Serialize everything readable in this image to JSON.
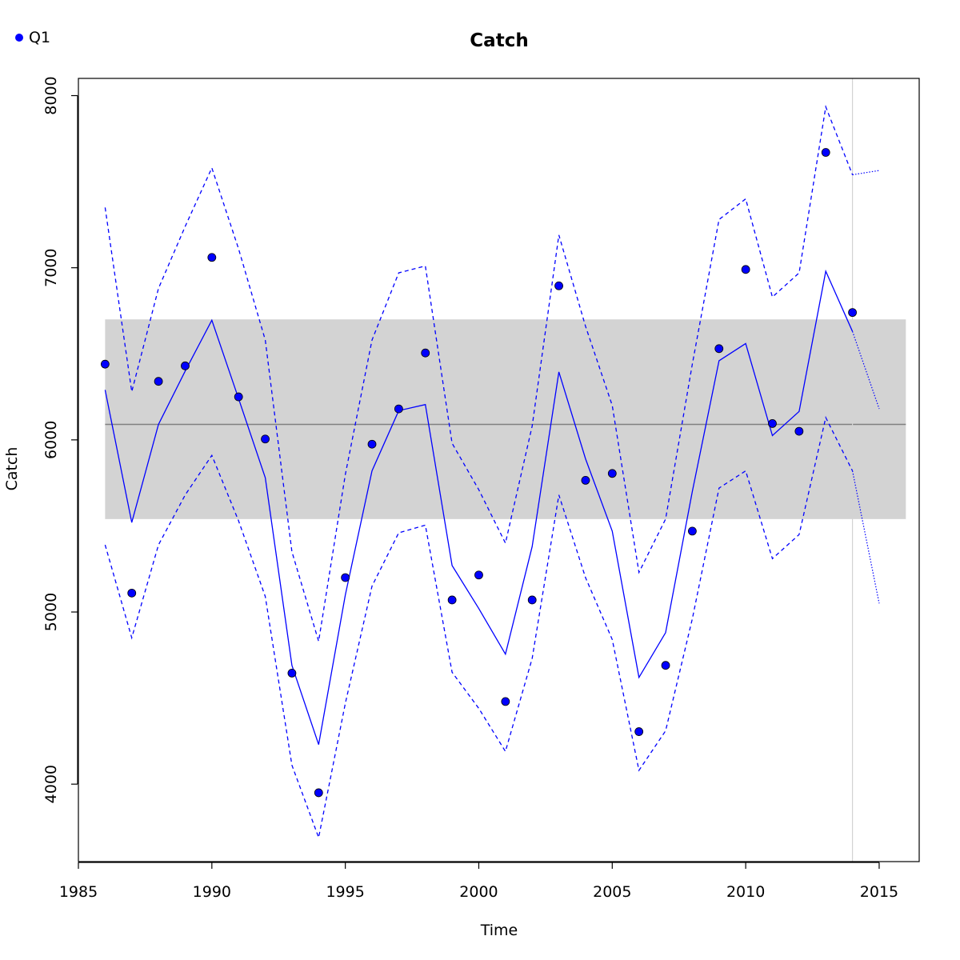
{
  "chart_data": {
    "type": "line",
    "title": "Catch",
    "xlabel": "Time",
    "ylabel": "Catch",
    "xlim": [
      1985,
      2016.5
    ],
    "ylim": [
      3550,
      8100
    ],
    "xticks": [
      1985,
      1990,
      1995,
      2000,
      2005,
      2010,
      2015
    ],
    "yticks": [
      4000,
      5000,
      6000,
      7000,
      8000
    ],
    "grid": false,
    "legend": {
      "position": "top-left",
      "entries": [
        {
          "label": "Q1",
          "color": "#0000ff",
          "marker": "point"
        }
      ]
    },
    "colors": {
      "series": "#0000ff",
      "band": "#d3d3d3",
      "mean_line": "#808080",
      "vline": "#d3d3d3"
    },
    "reference": {
      "mean": 6090,
      "band_low": 5540,
      "band_high": 6700,
      "x_start": 1986,
      "x_end": 2016,
      "vline_x": 2014
    },
    "observed": {
      "name": "Q1",
      "x": [
        1986,
        1987,
        1988,
        1989,
        1990,
        1991,
        1992,
        1993,
        1994,
        1995,
        1996,
        1997,
        1998,
        1999,
        2000,
        2001,
        2002,
        2003,
        2004,
        2005,
        2006,
        2007,
        2008,
        2009,
        2010,
        2011,
        2012,
        2013,
        2014
      ],
      "y": [
        6440,
        5110,
        6340,
        6430,
        7060,
        6250,
        6005,
        4645,
        3950,
        5200,
        5975,
        6180,
        6505,
        5070,
        5215,
        4480,
        5070,
        6895,
        5765,
        5805,
        4305,
        4690,
        5470,
        6530,
        6990,
        6095,
        6050,
        7670,
        6740
      ]
    },
    "fitted": {
      "x": [
        1986,
        1987,
        1988,
        1989,
        1990,
        1991,
        1992,
        1993,
        1994,
        1995,
        1996,
        1997,
        1998,
        1999,
        2000,
        2001,
        2002,
        2003,
        2004,
        2005,
        2006,
        2007,
        2008,
        2009,
        2010,
        2011,
        2012,
        2013,
        2014
      ],
      "y": [
        6290,
        5520,
        6090,
        6400,
        6695,
        6240,
        5780,
        4690,
        4230,
        5100,
        5820,
        6170,
        6205,
        5270,
        5020,
        4755,
        5380,
        6395,
        5890,
        5470,
        4620,
        4880,
        5700,
        6460,
        6560,
        6025,
        6165,
        6980,
        6630
      ]
    },
    "upper": {
      "x": [
        1986,
        1987,
        1988,
        1989,
        1990,
        1991,
        1992,
        1993,
        1994,
        1995,
        1996,
        1997,
        1998,
        1999,
        2000,
        2001,
        2002,
        2003,
        2004,
        2005,
        2006,
        2007,
        2008,
        2009,
        2010,
        2011,
        2012,
        2013,
        2014
      ],
      "y": [
        7350,
        6280,
        6880,
        7240,
        7580,
        7110,
        6580,
        5350,
        4830,
        5800,
        6580,
        6970,
        7010,
        5980,
        5710,
        5400,
        6080,
        7190,
        6660,
        6200,
        5230,
        5540,
        6440,
        7280,
        7400,
        6830,
        6970,
        7935,
        7540
      ]
    },
    "lower": {
      "x": [
        1986,
        1987,
        1988,
        1989,
        1990,
        1991,
        1992,
        1993,
        1994,
        1995,
        1996,
        1997,
        1998,
        1999,
        2000,
        2001,
        2002,
        2003,
        2004,
        2005,
        2006,
        2007,
        2008,
        2009,
        2010,
        2011,
        2012,
        2013,
        2014
      ],
      "y": [
        5390,
        4850,
        5390,
        5680,
        5910,
        5530,
        5090,
        4110,
        3690,
        4470,
        5150,
        5460,
        5505,
        4650,
        4440,
        4190,
        4730,
        5680,
        5200,
        4840,
        4080,
        4310,
        4960,
        5720,
        5820,
        5310,
        5450,
        6130,
        5820
      ]
    },
    "forecast": {
      "x": [
        2014,
        2015
      ],
      "fitted": [
        6630,
        6180
      ],
      "upper": [
        7540,
        7565
      ],
      "lower": [
        5820,
        5050
      ]
    }
  }
}
